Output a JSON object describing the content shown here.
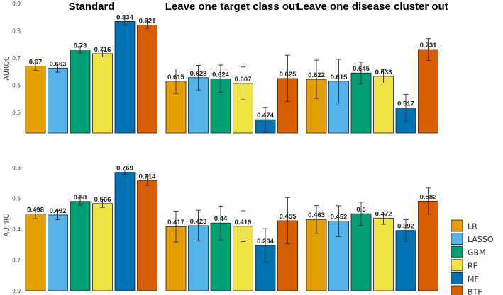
{
  "chart_data": [
    {
      "type": "bar",
      "ylabel": "AUROC",
      "ylim": [
        0.425,
        0.9
      ],
      "yticks": [
        0.5,
        0.6,
        0.7,
        0.8,
        0.9
      ],
      "ytick_labels": [
        "0.5",
        "0.6",
        "0.7",
        "0.8",
        "0.9"
      ],
      "facets": [
        {
          "title": "Standard",
          "values": [
            0.67,
            0.663,
            0.73,
            0.716,
            0.834,
            0.821
          ],
          "labels": [
            "0.67",
            "0.663",
            "0.73",
            "0.716",
            "0.834",
            "0.821"
          ],
          "err": [
            0.015,
            0.015,
            0.012,
            0.012,
            0.012,
            0.012
          ]
        },
        {
          "title": "Leave one target class out",
          "values": [
            0.615,
            0.628,
            0.624,
            0.607,
            0.474,
            0.625
          ],
          "labels": [
            "0.615",
            "0.628",
            "0.624",
            "0.607",
            "0.474",
            "0.625"
          ],
          "err": [
            0.045,
            0.045,
            0.05,
            0.06,
            0.045,
            0.085
          ]
        },
        {
          "title": "Leave one disease cluster out",
          "values": [
            0.622,
            0.615,
            0.645,
            0.633,
            0.517,
            0.731
          ],
          "labels": [
            "0.622",
            "0.615",
            "0.645",
            "0.633",
            "0.517",
            "0.731"
          ],
          "err": [
            0.07,
            0.08,
            0.04,
            0.025,
            0.05,
            0.04
          ]
        }
      ]
    },
    {
      "type": "bar",
      "ylabel": "AUPRC",
      "ylim": [
        0.0,
        0.85
      ],
      "yticks": [
        0.0,
        0.2,
        0.4,
        0.6,
        0.8
      ],
      "ytick_labels": [
        "0.0",
        "0.2",
        "0.4",
        "0.6",
        "0.8"
      ],
      "facets": [
        {
          "title": "",
          "values": [
            0.498,
            0.492,
            0.58,
            0.566,
            0.769,
            0.714
          ],
          "labels": [
            "0.498",
            "0.492",
            "0.58",
            "0.566",
            "0.769",
            "0.714"
          ],
          "err": [
            0.03,
            0.03,
            0.025,
            0.025,
            0.015,
            0.03
          ]
        },
        {
          "title": "",
          "values": [
            0.417,
            0.423,
            0.44,
            0.419,
            0.294,
            0.455
          ],
          "labels": [
            "0.417",
            "0.423",
            "0.44",
            "0.419",
            "0.294",
            "0.455"
          ],
          "err": [
            0.1,
            0.1,
            0.11,
            0.1,
            0.11,
            0.15
          ]
        },
        {
          "title": "",
          "values": [
            0.463,
            0.452,
            0.5,
            0.472,
            0.392,
            0.582
          ],
          "labels": [
            "0.463",
            "0.452",
            "0.5",
            "0.472",
            "0.392",
            "0.582"
          ],
          "err": [
            0.09,
            0.1,
            0.075,
            0.04,
            0.07,
            0.085
          ]
        }
      ]
    }
  ],
  "legend": {
    "position": "right",
    "items": [
      {
        "name": "LR",
        "color": "#E69F00"
      },
      {
        "name": "LASSO",
        "color": "#56B4E9"
      },
      {
        "name": "GBM",
        "color": "#009E73"
      },
      {
        "name": "RF",
        "color": "#F0E442"
      },
      {
        "name": "MF",
        "color": "#0072B2"
      },
      {
        "name": "BTF",
        "color": "#D55E00"
      }
    ]
  }
}
